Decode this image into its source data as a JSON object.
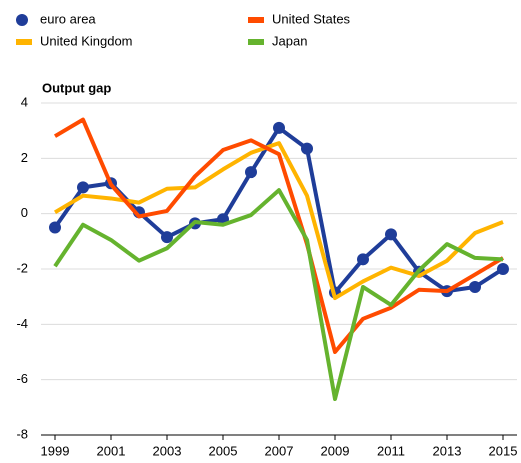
{
  "chart_data": {
    "type": "line",
    "ylabel": "Output gap",
    "x": [
      1999,
      2000,
      2001,
      2002,
      2003,
      2004,
      2005,
      2006,
      2007,
      2008,
      2009,
      2010,
      2011,
      2012,
      2013,
      2014,
      2015
    ],
    "xlim": [
      1998.5,
      2015.5
    ],
    "xticks": [
      1999,
      2001,
      2003,
      2005,
      2007,
      2009,
      2011,
      2013,
      2015
    ],
    "ylim": [
      -8,
      4
    ],
    "yticks": [
      -8,
      -6,
      -4,
      -2,
      0,
      2,
      4
    ],
    "grid": true,
    "series": [
      {
        "name": "euro area",
        "color": "#1f3d99",
        "marker": "circle",
        "values": [
          -0.5,
          0.95,
          1.1,
          0.05,
          -0.85,
          -0.35,
          -0.2,
          1.5,
          3.1,
          2.35,
          -2.85,
          -1.65,
          -0.75,
          -2.1,
          -2.8,
          -2.65,
          -2.0
        ]
      },
      {
        "name": "United Kingdom",
        "color": "#ffb400",
        "values": [
          0.05,
          0.65,
          0.55,
          0.4,
          0.9,
          0.95,
          1.6,
          2.2,
          2.55,
          0.65,
          -3.05,
          -2.45,
          -1.95,
          -2.25,
          -1.7,
          -0.7,
          -0.3
        ]
      },
      {
        "name": "United States",
        "color": "#ff4b00",
        "values": [
          2.8,
          3.4,
          1.05,
          -0.1,
          0.1,
          1.35,
          2.3,
          2.65,
          2.15,
          -1.1,
          -5.0,
          -3.8,
          -3.4,
          -2.75,
          -2.8,
          -2.2,
          -1.6
        ]
      },
      {
        "name": "Japan",
        "color": "#65b32e",
        "values": [
          -1.9,
          -0.4,
          -0.95,
          -1.7,
          -1.25,
          -0.3,
          -0.4,
          -0.05,
          0.85,
          -0.95,
          -6.7,
          -2.65,
          -3.3,
          -2.05,
          -1.1,
          -1.6,
          -1.65
        ]
      }
    ]
  }
}
